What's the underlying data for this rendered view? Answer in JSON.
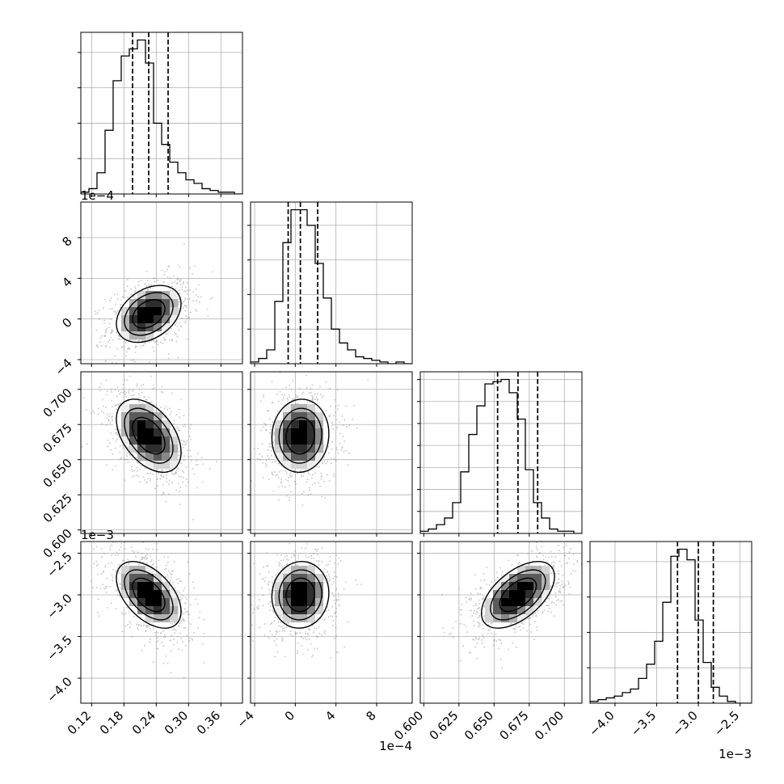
{
  "chart_data": {
    "type": "corner",
    "title": "",
    "grid": true,
    "parameters": [
      {
        "xlim": [
          0.1,
          0.4
        ],
        "ticks": [
          0.12,
          0.18,
          0.24,
          0.3,
          0.36
        ],
        "tick_labels": [
          "0.12",
          "0.18",
          "0.24",
          "0.30",
          "0.36"
        ],
        "offset_label": "",
        "quantiles": [
          0.196,
          0.226,
          0.262
        ],
        "median": 0.226,
        "sd": 0.03
      },
      {
        "xlim": [
          -0.00044,
          0.00115
        ],
        "ticks": [
          -0.0004,
          0.0,
          0.0004,
          0.0008
        ],
        "tick_labels": [
          "−4",
          "0",
          "4",
          "8"
        ],
        "offset_label": "1e−4",
        "quantiles": [
          -7e-05,
          5e-05,
          0.00022
        ],
        "median": 5e-05,
        "sd": 0.00014
      },
      {
        "xlim": [
          0.5975,
          0.7125
        ],
        "ticks": [
          0.6,
          0.625,
          0.65,
          0.675,
          0.7
        ],
        "tick_labels": [
          "0.600",
          "0.625",
          "0.650",
          "0.675",
          "0.700"
        ],
        "offset_label": "",
        "quantiles": [
          0.6525,
          0.667,
          0.681
        ],
        "median": 0.667,
        "sd": 0.013
      },
      {
        "xlim": [
          -0.0043,
          -0.00236
        ],
        "ticks": [
          -0.004,
          -0.0035,
          -0.003,
          -0.0025
        ],
        "tick_labels": [
          "−4.0",
          "−3.5",
          "−3.0",
          "−2.5"
        ],
        "offset_label": "1e−3",
        "quantiles": [
          -0.00325,
          -0.003,
          -0.00282
        ],
        "median": -0.003,
        "sd": 0.0002
      }
    ],
    "histograms": [
      {
        "values": [
          1,
          3,
          12,
          36,
          64,
          78,
          82,
          87,
          74,
          40,
          28,
          18,
          12,
          8,
          6,
          3,
          2,
          1,
          1,
          0
        ]
      },
      {
        "values": [
          1,
          3,
          8,
          36,
          70,
          89,
          89,
          80,
          58,
          38,
          20,
          12,
          8,
          4,
          3,
          2,
          1,
          0,
          1,
          0
        ]
      },
      {
        "values": [
          1,
          2,
          4,
          7,
          14,
          28,
          45,
          58,
          68,
          69,
          70,
          64,
          52,
          29,
          14,
          7,
          2,
          1,
          1,
          0
        ]
      },
      {
        "values": [
          1,
          2,
          3,
          4,
          6,
          8,
          14,
          22,
          35,
          57,
          83,
          87,
          81,
          47,
          23,
          9,
          4,
          1,
          0,
          0
        ]
      }
    ],
    "correlations": [
      {
        "pair": [
          0,
          1
        ],
        "r": 0.35
      },
      {
        "pair": [
          0,
          2
        ],
        "r": -0.45
      },
      {
        "pair": [
          1,
          2
        ],
        "r": 0.05
      },
      {
        "pair": [
          0,
          3
        ],
        "r": -0.5
      },
      {
        "pair": [
          1,
          3
        ],
        "r": 0.05
      },
      {
        "pair": [
          2,
          3
        ],
        "r": 0.55
      }
    ],
    "contour_levels": [
      1.0,
      1.5,
      2.0
    ],
    "colors": {
      "line": "#000000",
      "grid": "#b0b0b0",
      "points": "#808080"
    }
  }
}
